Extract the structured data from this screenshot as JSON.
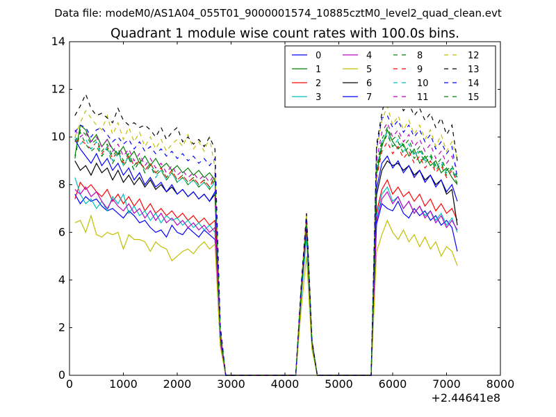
{
  "chart_data": {
    "type": "line",
    "suptitle": "Data file: modeM0/AS1A04_055T01_9000001574_10885cztM0_level2_quad_clean.evt",
    "title": "Quadrant 1 module wise count rates with 100.0s bins.",
    "xlabel": "",
    "ylabel": "",
    "x_offset_label": "+2.44641e8",
    "xlim": [
      0,
      8000
    ],
    "ylim": [
      0,
      14
    ],
    "xticks": [
      "0",
      "1000",
      "2000",
      "3000",
      "4000",
      "5000",
      "6000",
      "7000",
      "8000"
    ],
    "yticks": [
      "0",
      "2",
      "4",
      "6",
      "8",
      "10",
      "12",
      "14"
    ],
    "grid": false,
    "legend_position": "top-right",
    "x": [
      100,
      200,
      300,
      400,
      500,
      600,
      700,
      800,
      900,
      1000,
      1100,
      1200,
      1300,
      1400,
      1500,
      1600,
      1700,
      1800,
      1900,
      2000,
      2100,
      2200,
      2300,
      2400,
      2500,
      2600,
      2700,
      2800,
      2900,
      3000,
      3100,
      3200,
      3300,
      3400,
      3500,
      3600,
      3700,
      3800,
      3900,
      4000,
      4100,
      4200,
      4300,
      4400,
      4500,
      4600,
      4700,
      4800,
      4900,
      5000,
      5100,
      5200,
      5300,
      5400,
      5500,
      5600,
      5700,
      5800,
      5900,
      6000,
      6100,
      6200,
      6300,
      6400,
      6500,
      6600,
      6700,
      6800,
      6900,
      7000,
      7100,
      7200
    ],
    "series": [
      {
        "name": "0",
        "color": "#0000ff",
        "dash": "solid",
        "pre": [
          7.6,
          7.2,
          7.5,
          7.3,
          7.4,
          7.1,
          6.9,
          7.0,
          6.8,
          6.6,
          6.9,
          6.7,
          6.4,
          6.5,
          6.2,
          6.0,
          6.1,
          5.8,
          6.3,
          6.0,
          5.9,
          6.2,
          6.0,
          5.8,
          6.1,
          5.9,
          5.7
        ],
        "peak": 6.3,
        "post": [
          7.2,
          7.0,
          6.9,
          7.3,
          6.8,
          6.6,
          7.0,
          6.7,
          6.9,
          6.5,
          6.7,
          6.3,
          6.5,
          6.2,
          5.2
        ]
      },
      {
        "name": "1",
        "color": "#008000",
        "dash": "solid",
        "pre": [
          9.2,
          10.5,
          10.3,
          9.8,
          10.1,
          9.6,
          9.9,
          9.5,
          9.3,
          9.6,
          9.1,
          9.4,
          8.9,
          9.2,
          8.8,
          9.1,
          8.7,
          8.9,
          8.6,
          8.8,
          8.5,
          8.7,
          8.4,
          8.6,
          8.3,
          8.5,
          8.2
        ],
        "peak": 6.5,
        "post": [
          9.6,
          10.3,
          9.8,
          9.5,
          9.7,
          9.2,
          9.5,
          8.9,
          9.2,
          8.8,
          9.0,
          8.5,
          8.7,
          8.3,
          8.0
        ]
      },
      {
        "name": "2",
        "color": "#ff0000",
        "dash": "solid",
        "pre": [
          7.4,
          8.1,
          7.8,
          8.0,
          7.7,
          7.5,
          7.8,
          7.3,
          7.6,
          7.2,
          7.5,
          7.1,
          7.4,
          6.9,
          7.2,
          6.8,
          7.0,
          6.7,
          6.9,
          6.6,
          6.8,
          6.5,
          6.7,
          6.4,
          6.6,
          6.3,
          6.5
        ],
        "peak": 6.0,
        "post": [
          7.8,
          8.2,
          7.6,
          7.9,
          7.5,
          7.7,
          7.3,
          7.6,
          7.1,
          7.4,
          6.9,
          7.2,
          6.8,
          7.0,
          6.5
        ]
      },
      {
        "name": "3",
        "color": "#00bfbf",
        "dash": "solid",
        "pre": [
          8.3,
          7.6,
          7.2,
          7.4,
          7.0,
          7.3,
          6.9,
          7.5,
          7.2,
          7.6,
          6.8,
          7.1,
          6.7,
          6.9,
          6.5,
          6.8,
          6.4,
          6.7,
          6.5,
          6.6,
          6.3,
          6.5,
          6.2,
          6.4,
          6.1,
          6.3,
          6.0
        ],
        "peak": 5.8,
        "post": [
          7.6,
          7.9,
          7.3,
          7.5,
          7.0,
          7.3,
          6.8,
          7.1,
          6.7,
          6.9,
          6.5,
          6.8,
          6.3,
          6.6,
          6.0
        ]
      },
      {
        "name": "4",
        "color": "#bf00bf",
        "dash": "solid",
        "pre": [
          7.8,
          7.6,
          7.9,
          7.5,
          7.7,
          7.3,
          7.0,
          7.4,
          7.1,
          6.9,
          7.2,
          6.8,
          7.0,
          6.6,
          6.9,
          6.5,
          6.8,
          6.4,
          6.6,
          6.3,
          6.5,
          6.2,
          6.4,
          6.1,
          6.3,
          6.0,
          6.2
        ],
        "peak": 6.2,
        "post": [
          7.4,
          7.7,
          7.2,
          7.5,
          7.0,
          7.3,
          6.8,
          7.1,
          6.6,
          6.9,
          6.4,
          6.7,
          6.2,
          6.5,
          6.1
        ]
      },
      {
        "name": "5",
        "color": "#bfbf00",
        "dash": "solid",
        "pre": [
          6.4,
          6.5,
          6.0,
          6.7,
          5.9,
          5.8,
          6.0,
          5.9,
          6.0,
          5.3,
          5.9,
          5.7,
          5.7,
          5.6,
          5.2,
          5.6,
          5.4,
          5.3,
          4.8,
          5.0,
          5.2,
          5.3,
          5.1,
          5.4,
          5.6,
          5.3,
          5.5
        ],
        "peak": 5.0,
        "post": [
          5.9,
          6.5,
          6.0,
          5.7,
          6.1,
          5.6,
          5.9,
          5.4,
          5.8,
          5.3,
          5.6,
          5.0,
          5.4,
          5.2,
          4.6
        ]
      },
      {
        "name": "6",
        "color": "#000000",
        "dash": "solid",
        "pre": [
          9.0,
          8.6,
          8.8,
          8.4,
          8.9,
          8.5,
          8.7,
          8.2,
          8.6,
          8.1,
          8.4,
          8.0,
          8.3,
          7.9,
          8.2,
          7.8,
          8.0,
          7.7,
          7.9,
          7.6,
          7.8,
          7.5,
          7.7,
          7.4,
          7.6,
          7.3,
          7.6
        ],
        "peak": 6.4,
        "post": [
          8.6,
          9.0,
          8.8,
          8.9,
          8.6,
          8.8,
          8.4,
          8.6,
          8.2,
          8.4,
          8.0,
          8.2,
          7.6,
          7.8,
          6.3
        ]
      },
      {
        "name": "7",
        "color": "#0000ff",
        "dash": "solid",
        "pre": [
          9.9,
          9.5,
          9.2,
          8.9,
          9.3,
          8.8,
          9.1,
          8.6,
          8.9,
          8.4,
          8.7,
          8.2,
          8.5,
          8.0,
          8.3,
          7.9,
          8.1,
          7.7,
          8.0,
          7.6,
          7.8,
          7.5,
          7.7,
          7.4,
          7.6,
          7.3,
          7.7
        ],
        "peak": 6.6,
        "post": [
          8.9,
          9.2,
          8.7,
          9.0,
          8.5,
          8.8,
          8.3,
          8.6,
          8.1,
          8.4,
          7.9,
          8.2,
          7.7,
          8.0,
          7.3
        ]
      },
      {
        "name": "8",
        "color": "#008000",
        "dash": "dashed",
        "pre": [
          9.1,
          10.3,
          10.1,
          9.7,
          9.9,
          9.4,
          9.7,
          9.2,
          9.5,
          9.0,
          9.3,
          8.8,
          9.1,
          8.6,
          8.9,
          8.5,
          8.7,
          8.3,
          8.6,
          8.2,
          8.4,
          8.1,
          8.3,
          8.0,
          8.2,
          7.9,
          8.4
        ],
        "peak": 6.4,
        "post": [
          9.9,
          10.4,
          9.9,
          10.1,
          9.6,
          9.9,
          9.3,
          9.6,
          9.1,
          9.3,
          8.8,
          9.1,
          8.6,
          8.8,
          8.3
        ]
      },
      {
        "name": "9",
        "color": "#ff0000",
        "dash": "dashed",
        "pre": [
          9.8,
          9.9,
          9.7,
          9.5,
          9.8,
          9.3,
          9.6,
          9.1,
          9.4,
          8.9,
          9.2,
          8.8,
          9.0,
          8.6,
          8.9,
          8.5,
          8.7,
          8.3,
          8.6,
          8.2,
          8.4,
          8.1,
          8.3,
          8.0,
          8.2,
          7.9,
          8.3
        ],
        "peak": 6.6,
        "post": [
          9.4,
          9.8,
          9.3,
          9.6,
          9.1,
          9.4,
          8.9,
          9.2,
          8.7,
          9.0,
          8.5,
          8.8,
          8.3,
          8.6,
          8.1
        ]
      },
      {
        "name": "10",
        "color": "#00bfbf",
        "dash": "dashed",
        "pre": [
          10.0,
          9.7,
          9.9,
          9.5,
          9.8,
          9.2,
          9.6,
          9.0,
          9.4,
          8.8,
          9.2,
          8.6,
          9.0,
          8.5,
          8.8,
          8.3,
          8.6,
          8.2,
          8.5,
          8.1,
          8.3,
          8.0,
          8.2,
          7.9,
          8.1,
          7.8,
          8.1
        ],
        "peak": 6.7,
        "post": [
          9.8,
          10.2,
          9.6,
          9.9,
          9.4,
          9.7,
          9.2,
          9.5,
          9.0,
          9.2,
          8.7,
          9.0,
          8.5,
          8.7,
          8.2
        ]
      },
      {
        "name": "11",
        "color": "#bf00bf",
        "dash": "dashed",
        "pre": [
          10.3,
          10.0,
          10.2,
          9.8,
          10.0,
          9.6,
          9.9,
          9.4,
          9.7,
          9.2,
          9.5,
          9.0,
          9.3,
          8.8,
          9.1,
          8.7,
          8.9,
          8.5,
          8.8,
          8.4,
          8.6,
          8.3,
          8.5,
          8.2,
          8.4,
          8.1,
          8.5
        ],
        "peak": 6.8,
        "post": [
          10.2,
          10.6,
          10.0,
          10.3,
          9.8,
          10.1,
          9.6,
          9.9,
          9.4,
          9.7,
          9.1,
          9.4,
          8.9,
          9.2,
          8.6
        ]
      },
      {
        "name": "12",
        "color": "#bfbf00",
        "dash": "dashed",
        "pre": [
          10.0,
          10.6,
          11.1,
          10.8,
          10.5,
          10.3,
          10.9,
          10.1,
          10.6,
          9.9,
          10.4,
          9.8,
          10.2,
          9.6,
          10.0,
          9.5,
          9.9,
          9.4,
          9.7,
          9.9,
          9.6,
          10.1,
          9.5,
          9.8,
          9.4,
          10.0,
          8.7
        ],
        "peak": 6.8,
        "post": [
          10.7,
          11.3,
          10.5,
          10.9,
          10.3,
          10.7,
          10.1,
          10.5,
          9.9,
          10.3,
          9.6,
          10.1,
          9.4,
          9.8,
          9.1
        ]
      },
      {
        "name": "13",
        "color": "#000000",
        "dash": "dashed",
        "pre": [
          10.9,
          11.3,
          11.8,
          11.2,
          10.9,
          11.0,
          10.8,
          10.6,
          11.2,
          10.7,
          10.5,
          10.6,
          10.4,
          10.5,
          10.3,
          10.0,
          10.4,
          9.9,
          10.2,
          10.4,
          9.8,
          10.0,
          9.7,
          9.9,
          9.6,
          10.0,
          9.5
        ],
        "peak": 6.8,
        "post": [
          11.0,
          12.0,
          11.3,
          11.6,
          11.1,
          11.4,
          10.9,
          11.2,
          10.7,
          11.0,
          10.4,
          10.8,
          10.1,
          10.5,
          9.0
        ]
      },
      {
        "name": "14",
        "color": "#0000ff",
        "dash": "dashed",
        "pre": [
          10.2,
          10.5,
          10.4,
          10.0,
          10.3,
          10.4,
          10.1,
          9.8,
          10.0,
          9.7,
          9.9,
          9.5,
          9.8,
          9.4,
          9.6,
          9.3,
          9.5,
          9.2,
          9.4,
          9.1,
          9.3,
          9.0,
          9.2,
          8.9,
          9.1,
          8.8,
          9.1
        ],
        "peak": 6.5,
        "post": [
          10.8,
          10.9,
          10.4,
          10.7,
          10.2,
          10.5,
          10.0,
          10.3,
          9.8,
          10.1,
          9.5,
          9.8,
          9.3,
          9.6,
          8.3
        ]
      },
      {
        "name": "15",
        "color": "#008000",
        "dash": "dashed",
        "pre": [
          9.8,
          10.2,
          9.7,
          9.4,
          9.6,
          9.2,
          9.5,
          8.9,
          9.3,
          8.8,
          9.1,
          8.6,
          9.0,
          8.5,
          8.8,
          8.4,
          8.6,
          8.2,
          8.5,
          8.1,
          8.3,
          8.0,
          8.2,
          7.9,
          8.1,
          7.8,
          8.2
        ],
        "peak": 6.4,
        "post": [
          9.7,
          10.1,
          9.6,
          9.8,
          9.3,
          9.6,
          9.1,
          9.4,
          8.9,
          9.2,
          8.6,
          8.9,
          8.4,
          8.7,
          8.0
        ]
      }
    ]
  }
}
